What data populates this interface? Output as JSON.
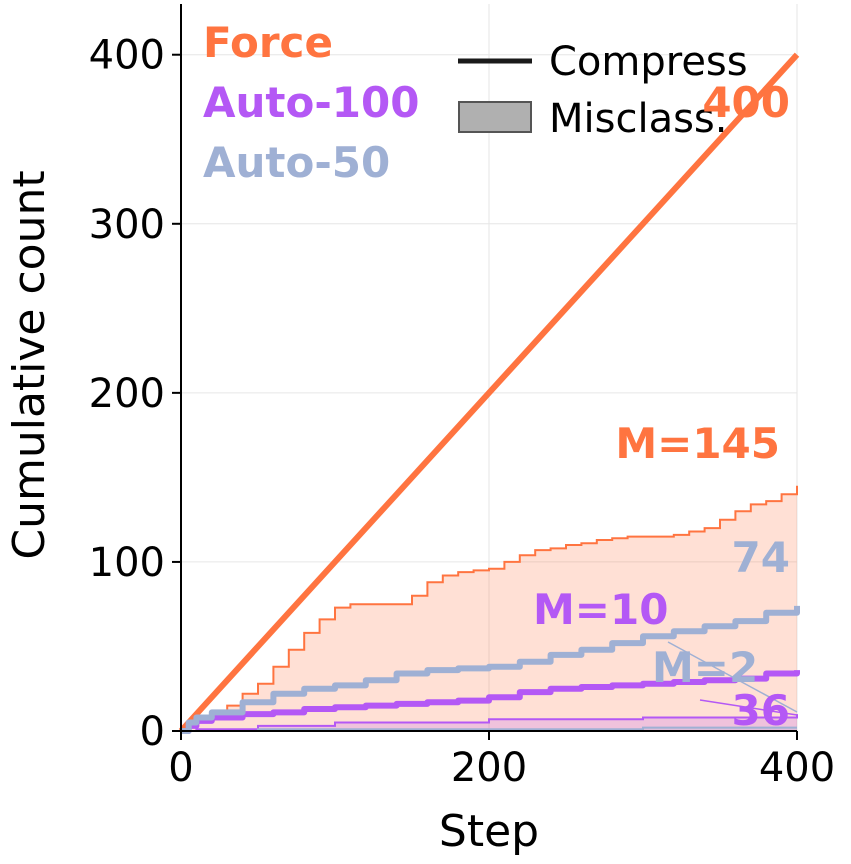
{
  "chart_data": {
    "type": "line",
    "title": "",
    "xlabel": "Step",
    "ylabel": "Cumulative count",
    "xlim": [
      0,
      400
    ],
    "ylim": [
      0,
      430
    ],
    "xticks": [
      0,
      200,
      400
    ],
    "yticks": [
      0,
      100,
      200,
      300,
      400
    ],
    "grid": true,
    "legend": {
      "placement": "top-right",
      "entries": [
        {
          "label": "Compress",
          "style": "line"
        },
        {
          "label": "Misclass.",
          "style": "patch"
        }
      ]
    },
    "series_labels": {
      "placement": "top-left",
      "entries": [
        {
          "text": "Force",
          "color": "#ff7440"
        },
        {
          "text": "Auto-100",
          "color": "#b458f5"
        },
        {
          "text": "Auto-50",
          "color": "#9fb0d4"
        }
      ]
    },
    "series": [
      {
        "name": "Force",
        "color": "#ff7440",
        "compress": {
          "x": [
            0,
            400
          ],
          "y": [
            0,
            400
          ]
        },
        "misclass": {
          "x": [
            0,
            5,
            10,
            20,
            30,
            40,
            50,
            60,
            70,
            80,
            90,
            100,
            110,
            120,
            130,
            140,
            150,
            160,
            170,
            180,
            190,
            200,
            210,
            220,
            230,
            240,
            250,
            260,
            270,
            280,
            290,
            300,
            310,
            320,
            330,
            340,
            350,
            360,
            370,
            380,
            390,
            400
          ],
          "y": [
            0,
            5,
            8,
            10,
            15,
            22,
            28,
            38,
            48,
            58,
            66,
            73,
            75,
            75,
            75,
            75,
            80,
            88,
            92,
            94,
            95,
            96,
            100,
            104,
            107,
            108,
            110,
            111,
            113,
            114,
            115,
            115,
            115,
            116,
            118,
            120,
            125,
            130,
            134,
            136,
            140,
            145
          ]
        }
      },
      {
        "name": "Auto-100",
        "color": "#b458f5",
        "compress": {
          "x": [
            0,
            5,
            10,
            20,
            40,
            60,
            80,
            100,
            120,
            140,
            160,
            180,
            200,
            220,
            240,
            260,
            280,
            300,
            320,
            340,
            360,
            380,
            400
          ],
          "y": [
            0,
            3,
            6,
            8,
            10,
            11,
            13,
            14,
            15,
            16,
            17,
            18,
            20,
            23,
            25,
            26,
            27,
            28,
            29,
            30,
            31,
            34,
            36
          ]
        },
        "misclass": {
          "x": [
            0,
            10,
            50,
            100,
            200,
            300,
            400
          ],
          "y": [
            0,
            1,
            3,
            5,
            7,
            8,
            10
          ]
        }
      },
      {
        "name": "Auto-50",
        "color": "#9fb0d4",
        "compress": {
          "x": [
            0,
            5,
            10,
            20,
            40,
            60,
            80,
            100,
            120,
            140,
            160,
            180,
            200,
            220,
            240,
            260,
            280,
            300,
            320,
            340,
            360,
            380,
            400
          ],
          "y": [
            0,
            5,
            8,
            11,
            17,
            22,
            25,
            27,
            30,
            34,
            36,
            37,
            38,
            41,
            45,
            48,
            52,
            56,
            59,
            62,
            65,
            70,
            74
          ]
        },
        "misclass": {
          "x": [
            0,
            50,
            100,
            200,
            300,
            400
          ],
          "y": [
            0,
            1,
            1,
            1,
            2,
            2
          ]
        }
      }
    ],
    "annotations": [
      {
        "text": "400",
        "x": 400,
        "y": 400,
        "color": "#ff7440"
      },
      {
        "text": "M=145",
        "x": 400,
        "y": 145,
        "color": "#ff7440"
      },
      {
        "text": "74",
        "x": 400,
        "y": 74,
        "color": "#9fb0d4"
      },
      {
        "text": "M=10",
        "x": 330,
        "y": 10,
        "color": "#b458f5"
      },
      {
        "text": "M=2",
        "x": 385,
        "y": 2,
        "color": "#9fb0d4"
      },
      {
        "text": "36",
        "x": 400,
        "y": 36,
        "color": "#b458f5"
      }
    ]
  }
}
